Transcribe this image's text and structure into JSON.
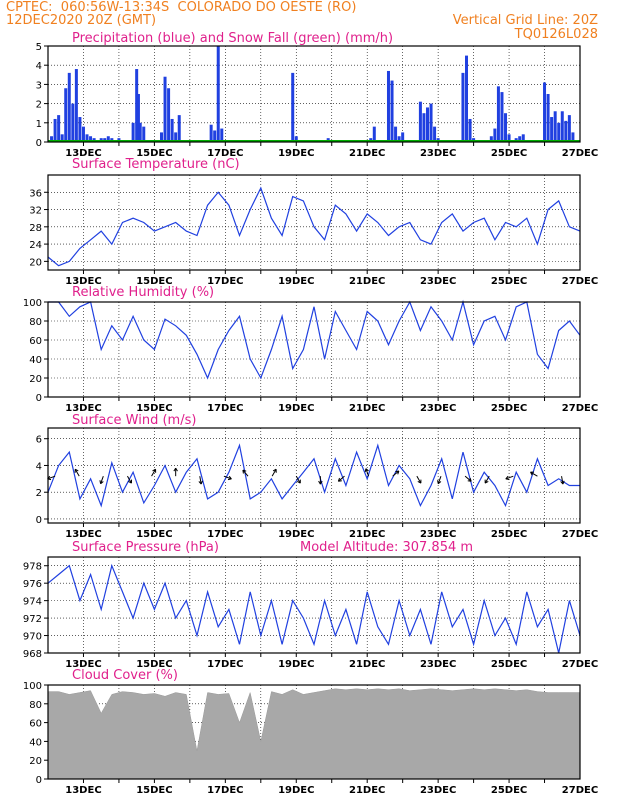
{
  "header": {
    "line1": "CPTEC:  060:56W-13:34S  COLORADO DO OESTE (RO)",
    "line2_left": "12DEC2020 20Z (GMT)",
    "line2_right": "Vertical Grid Line: 20Z",
    "line3_right": "TQ0126L028"
  },
  "colors": {
    "header": "#f08020",
    "title": "#e0208c",
    "line": "#2040e0",
    "snow": "#00b000",
    "cloud": "#a8a8a8"
  },
  "chart_data": [
    {
      "type": "bar",
      "title": "Precipitation (blue) and Snow Fall (green) (mm/h)",
      "ylim": [
        0,
        5
      ],
      "yticks": [
        0,
        1,
        2,
        3,
        4,
        5
      ],
      "xticks": [
        "13DEC",
        "15DEC",
        "17DEC",
        "19DEC",
        "21DEC",
        "23DEC",
        "25DEC",
        "27DEC"
      ],
      "series": [
        {
          "name": "Precipitation",
          "x": [
            12.1,
            12.2,
            12.3,
            12.4,
            12.5,
            12.6,
            12.7,
            12.8,
            12.9,
            13.0,
            13.1,
            13.2,
            13.3,
            13.4,
            13.5,
            13.6,
            13.7,
            13.8,
            13.9,
            14.0,
            14.4,
            14.5,
            14.55,
            14.6,
            14.7,
            15.2,
            15.3,
            15.4,
            15.5,
            15.6,
            15.7,
            16.6,
            16.7,
            16.8,
            16.9,
            18.0,
            18.8,
            18.9,
            19.0,
            19.4,
            19.6,
            19.9,
            20.8,
            21.1,
            21.2,
            21.6,
            21.7,
            21.8,
            21.9,
            22.0,
            22.5,
            22.6,
            22.7,
            22.8,
            22.9,
            23.0,
            23.7,
            23.8,
            23.9,
            24.0,
            24.2,
            24.3,
            24.5,
            24.6,
            24.7,
            24.8,
            24.9,
            25.0,
            25.1,
            25.2,
            25.3,
            25.4,
            26.0,
            26.1,
            26.2,
            26.3,
            26.4,
            26.5,
            26.6,
            26.7,
            26.8
          ],
          "values": [
            0.3,
            1.2,
            1.4,
            0.4,
            2.8,
            3.6,
            2.0,
            3.8,
            1.3,
            0.8,
            0.4,
            0.3,
            0.2,
            0.1,
            0.2,
            0.2,
            0.3,
            0.2,
            0.1,
            0.2,
            1.0,
            3.8,
            2.5,
            1.0,
            0.8,
            0.5,
            3.4,
            2.8,
            1.2,
            0.5,
            1.4,
            0.9,
            0.6,
            5.0,
            0.7,
            0.1,
            0.1,
            3.6,
            0.3,
            0.1,
            0.1,
            0.2,
            0.1,
            0.2,
            0.8,
            3.7,
            3.2,
            0.8,
            0.3,
            0.5,
            2.1,
            1.5,
            1.8,
            2.0,
            0.8,
            0.2,
            3.6,
            4.5,
            1.2,
            0.2,
            0.1,
            0.1,
            0.3,
            0.7,
            2.9,
            2.6,
            1.5,
            0.4,
            0.1,
            0.2,
            0.3,
            0.4,
            3.1,
            2.5,
            1.3,
            1.6,
            1.0,
            1.6,
            1.1,
            1.4,
            0.5
          ]
        },
        {
          "name": "Snow Fall",
          "x": [
            12.0,
            27.0
          ],
          "values": [
            0,
            0
          ]
        }
      ]
    },
    {
      "type": "line",
      "title": "Surface Temperature (nC)",
      "ylim": [
        18,
        40
      ],
      "yticks": [
        20,
        24,
        28,
        32,
        36
      ],
      "xticks": [
        "13DEC",
        "15DEC",
        "17DEC",
        "19DEC",
        "21DEC",
        "23DEC",
        "25DEC",
        "27DEC"
      ],
      "x": [
        12.0,
        12.3,
        12.6,
        12.9,
        13.2,
        13.5,
        13.8,
        14.1,
        14.4,
        14.7,
        15.0,
        15.3,
        15.6,
        15.9,
        16.2,
        16.5,
        16.8,
        17.1,
        17.4,
        17.7,
        18.0,
        18.3,
        18.6,
        18.9,
        19.2,
        19.5,
        19.8,
        20.1,
        20.4,
        20.7,
        21.0,
        21.3,
        21.6,
        21.9,
        22.2,
        22.5,
        22.8,
        23.1,
        23.4,
        23.7,
        24.0,
        24.3,
        24.6,
        24.9,
        25.2,
        25.5,
        25.8,
        26.1,
        26.4,
        26.7,
        27.0
      ],
      "values": [
        21,
        19,
        20,
        23,
        25,
        27,
        24,
        29,
        30,
        29,
        27,
        28,
        29,
        27,
        26,
        33,
        36,
        33,
        26,
        32,
        37,
        30,
        26,
        35,
        34,
        28,
        25,
        33,
        31,
        27,
        31,
        29,
        26,
        28,
        29,
        25,
        24,
        29,
        31,
        27,
        29,
        30,
        25,
        29,
        28,
        30,
        24,
        32,
        34,
        28,
        27
      ]
    },
    {
      "type": "line",
      "title": "Relative Humidity (%)",
      "ylim": [
        0,
        100
      ],
      "yticks": [
        0,
        20,
        40,
        60,
        80,
        100
      ],
      "xticks": [
        "13DEC",
        "15DEC",
        "17DEC",
        "19DEC",
        "21DEC",
        "23DEC",
        "25DEC",
        "27DEC"
      ],
      "x": [
        12.0,
        12.3,
        12.6,
        12.9,
        13.2,
        13.5,
        13.8,
        14.1,
        14.4,
        14.7,
        15.0,
        15.3,
        15.6,
        15.9,
        16.2,
        16.5,
        16.8,
        17.1,
        17.4,
        17.7,
        18.0,
        18.3,
        18.6,
        18.9,
        19.2,
        19.5,
        19.8,
        20.1,
        20.4,
        20.7,
        21.0,
        21.3,
        21.6,
        21.9,
        22.2,
        22.5,
        22.8,
        23.1,
        23.4,
        23.7,
        24.0,
        24.3,
        24.6,
        24.9,
        25.2,
        25.5,
        25.8,
        26.1,
        26.4,
        26.7,
        27.0
      ],
      "values": [
        100,
        100,
        85,
        95,
        100,
        50,
        75,
        60,
        85,
        60,
        50,
        82,
        75,
        65,
        45,
        20,
        50,
        70,
        85,
        40,
        20,
        50,
        85,
        30,
        50,
        95,
        40,
        90,
        70,
        50,
        90,
        80,
        55,
        80,
        100,
        70,
        95,
        80,
        60,
        100,
        55,
        80,
        85,
        60,
        95,
        100,
        45,
        30,
        70,
        80,
        65
      ]
    },
    {
      "type": "line",
      "title": "Surface Wind (m/s)",
      "ylim": [
        -0.3,
        6.8
      ],
      "yticks": [
        0,
        2,
        4,
        6
      ],
      "xticks": [
        "13DEC",
        "15DEC",
        "17DEC",
        "19DEC",
        "21DEC",
        "23DEC",
        "25DEC",
        "27DEC"
      ],
      "x": [
        12.0,
        12.3,
        12.6,
        12.9,
        13.2,
        13.5,
        13.8,
        14.1,
        14.4,
        14.7,
        15.0,
        15.3,
        15.6,
        15.9,
        16.2,
        16.5,
        16.8,
        17.1,
        17.4,
        17.7,
        18.0,
        18.3,
        18.6,
        18.9,
        19.2,
        19.5,
        19.8,
        20.1,
        20.4,
        20.7,
        21.0,
        21.3,
        21.6,
        21.9,
        22.2,
        22.5,
        22.8,
        23.1,
        23.4,
        23.7,
        24.0,
        24.3,
        24.6,
        24.9,
        25.2,
        25.5,
        25.8,
        26.1,
        26.4,
        26.7,
        27.0
      ],
      "values": [
        2.0,
        4.0,
        5.0,
        1.5,
        3.0,
        1.0,
        4.2,
        2.0,
        3.5,
        1.2,
        2.5,
        4.0,
        2.0,
        3.5,
        4.5,
        1.5,
        2.0,
        3.5,
        5.5,
        1.5,
        2.0,
        3.0,
        1.5,
        2.5,
        3.5,
        4.5,
        2.0,
        4.5,
        2.5,
        5.0,
        3.0,
        5.5,
        2.5,
        4.0,
        3.0,
        1.0,
        2.5,
        4.5,
        1.5,
        5.0,
        2.0,
        3.5,
        2.5,
        1.0,
        3.5,
        2.0,
        4.5,
        2.5,
        3.0,
        2.5,
        2.5
      ]
    },
    {
      "type": "line",
      "title": "Surface Pressure (hPa)",
      "subtitle": "Model Altitude: 307.854 m",
      "ylim": [
        968,
        979
      ],
      "yticks": [
        968,
        970,
        972,
        974,
        976,
        978
      ],
      "xticks": [
        "13DEC",
        "15DEC",
        "17DEC",
        "19DEC",
        "21DEC",
        "23DEC",
        "25DEC",
        "27DEC"
      ],
      "x": [
        12.0,
        12.3,
        12.6,
        12.9,
        13.2,
        13.5,
        13.8,
        14.1,
        14.4,
        14.7,
        15.0,
        15.3,
        15.6,
        15.9,
        16.2,
        16.5,
        16.8,
        17.1,
        17.4,
        17.7,
        18.0,
        18.3,
        18.6,
        18.9,
        19.2,
        19.5,
        19.8,
        20.1,
        20.4,
        20.7,
        21.0,
        21.3,
        21.6,
        21.9,
        22.2,
        22.5,
        22.8,
        23.1,
        23.4,
        23.7,
        24.0,
        24.3,
        24.6,
        24.9,
        25.2,
        25.5,
        25.8,
        26.1,
        26.4,
        26.7,
        27.0
      ],
      "values": [
        976,
        977,
        978,
        974,
        977,
        973,
        978,
        975,
        972,
        976,
        973,
        976,
        972,
        974,
        970,
        975,
        971,
        973,
        969,
        975,
        970,
        974,
        969,
        974,
        972,
        969,
        974,
        970,
        973,
        969,
        975,
        971,
        969,
        974,
        970,
        973,
        969,
        975,
        971,
        973,
        969,
        974,
        970,
        972,
        969,
        975,
        971,
        973,
        968,
        974,
        970
      ]
    },
    {
      "type": "area",
      "title": "Cloud Cover (%)",
      "ylim": [
        0,
        100
      ],
      "yticks": [
        0,
        20,
        40,
        60,
        80,
        100
      ],
      "xticks": [
        "13DEC",
        "15DEC",
        "17DEC",
        "19DEC",
        "21DEC",
        "23DEC",
        "25DEC",
        "27DEC"
      ],
      "x": [
        12.0,
        12.3,
        12.6,
        12.9,
        13.2,
        13.5,
        13.8,
        14.1,
        14.4,
        14.7,
        15.0,
        15.3,
        15.6,
        15.9,
        16.2,
        16.5,
        16.8,
        17.1,
        17.4,
        17.7,
        18.0,
        18.3,
        18.6,
        18.9,
        19.2,
        19.5,
        19.8,
        20.1,
        20.4,
        20.7,
        21.0,
        21.3,
        21.6,
        21.9,
        22.2,
        22.5,
        22.8,
        23.1,
        23.4,
        23.7,
        24.0,
        24.3,
        24.6,
        24.9,
        25.2,
        25.5,
        25.8,
        26.1,
        26.4,
        26.7,
        27.0
      ],
      "values": [
        93,
        93,
        90,
        92,
        94,
        70,
        90,
        93,
        92,
        90,
        91,
        88,
        92,
        90,
        30,
        92,
        90,
        91,
        60,
        92,
        40,
        93,
        90,
        95,
        90,
        92,
        94,
        96,
        95,
        96,
        95,
        96,
        95,
        96,
        94,
        95,
        96,
        95,
        94,
        95,
        96,
        95,
        96,
        95,
        94,
        95,
        93,
        92,
        92,
        92,
        92
      ]
    }
  ]
}
